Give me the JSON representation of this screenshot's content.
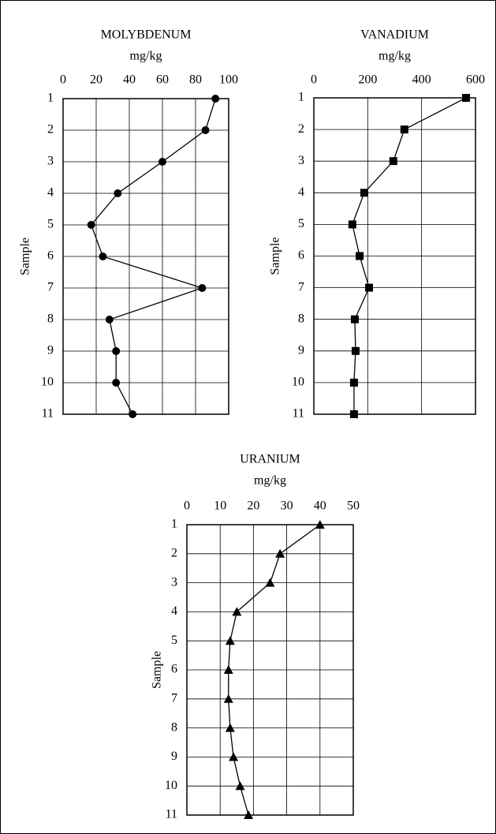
{
  "chart_data": [
    {
      "type": "line",
      "title": "MOLYBDENUM",
      "xlabel": "mg/kg",
      "ylabel": "Sample",
      "marker": "circle",
      "color": "#000000",
      "samples": [
        1,
        2,
        3,
        4,
        5,
        6,
        7,
        8,
        9,
        10,
        11
      ],
      "values": [
        92,
        86,
        60,
        33,
        17,
        24,
        84,
        28,
        32,
        32,
        42
      ],
      "xlim": [
        0,
        100
      ],
      "xticks": [
        0,
        20,
        40,
        60,
        80,
        100
      ],
      "ylim": [
        1,
        11
      ],
      "yticks": [
        1,
        2,
        3,
        4,
        5,
        6,
        7,
        8,
        9,
        10,
        11
      ],
      "y_inverted": true,
      "grid": true
    },
    {
      "type": "line",
      "title": "VANADIUM",
      "xlabel": "mg/kg",
      "ylabel": "Sample",
      "marker": "square",
      "color": "#000000",
      "samples": [
        1,
        2,
        3,
        4,
        5,
        6,
        7,
        8,
        9,
        10,
        11
      ],
      "values": [
        565,
        336,
        295,
        187,
        143,
        170,
        205,
        152,
        155,
        149,
        149
      ],
      "xlim": [
        0,
        600
      ],
      "xticks": [
        0,
        200,
        400,
        600
      ],
      "ylim": [
        1,
        11
      ],
      "yticks": [
        1,
        2,
        3,
        4,
        5,
        6,
        7,
        8,
        9,
        10,
        11
      ],
      "y_inverted": true,
      "grid": true
    },
    {
      "type": "line",
      "title": "URANIUM",
      "xlabel": "mg/kg",
      "ylabel": "Sample",
      "marker": "triangle",
      "color": "#000000",
      "samples": [
        1,
        2,
        3,
        4,
        5,
        6,
        7,
        8,
        9,
        10,
        11
      ],
      "values": [
        40,
        28,
        25,
        15,
        13,
        12.5,
        12.5,
        13,
        14,
        16,
        18.5
      ],
      "xlim": [
        0,
        50
      ],
      "xticks": [
        0,
        10,
        20,
        30,
        40,
        50
      ],
      "ylim": [
        1,
        11
      ],
      "yticks": [
        1,
        2,
        3,
        4,
        5,
        6,
        7,
        8,
        9,
        10,
        11
      ],
      "y_inverted": true,
      "grid": true
    }
  ]
}
